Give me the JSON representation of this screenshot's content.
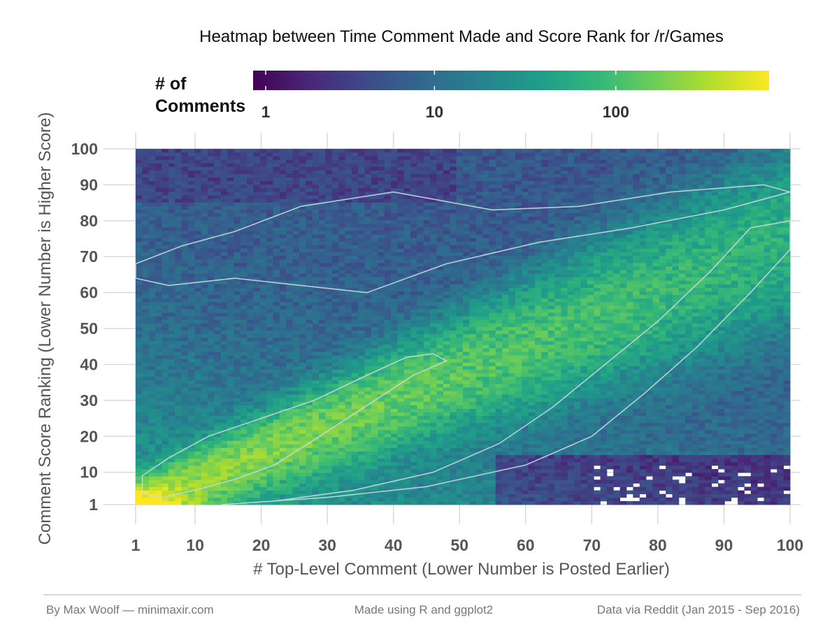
{
  "chart_data": {
    "type": "heatmap",
    "title": "Heatmap between Time Comment Made and Score Rank for /r/Games",
    "xlabel": "# Top-Level Comment (Lower Number is Posted Earlier)",
    "ylabel": "Comment Score Ranking (Lower Number is Higher Score)",
    "xlim": [
      1,
      100
    ],
    "ylim": [
      1,
      100
    ],
    "x_ticks": [
      1,
      10,
      20,
      30,
      40,
      50,
      60,
      70,
      80,
      90,
      100
    ],
    "y_ticks": [
      1,
      10,
      20,
      30,
      40,
      50,
      60,
      70,
      80,
      90,
      100
    ],
    "color_scale": "viridis",
    "color_trans": "log10",
    "legend": {
      "title_lines": [
        "# of",
        "Comments"
      ],
      "placement": "top",
      "ticks": [
        1,
        10,
        100
      ],
      "range": [
        1,
        700
      ]
    },
    "colors": [
      "#440154",
      "#482878",
      "#3e4a89",
      "#31688e",
      "#26828e",
      "#1f9e89",
      "#35b779",
      "#6ece58",
      "#b5de2b",
      "#fde725"
    ],
    "cells_summary": {
      "peak_count": 700,
      "peak_location": [
        1,
        1
      ],
      "diagonal_band_counts": "roughly 50-300 along y ≈ 0.75·x for x < 50",
      "contour_levels": [
        10,
        100
      ]
    }
  },
  "footer": {
    "left": "By Max Woolf — minimaxir.com",
    "center": "Made using R and ggplot2",
    "right": "Data via Reddit (Jan 2015 - Sep 2016)"
  }
}
